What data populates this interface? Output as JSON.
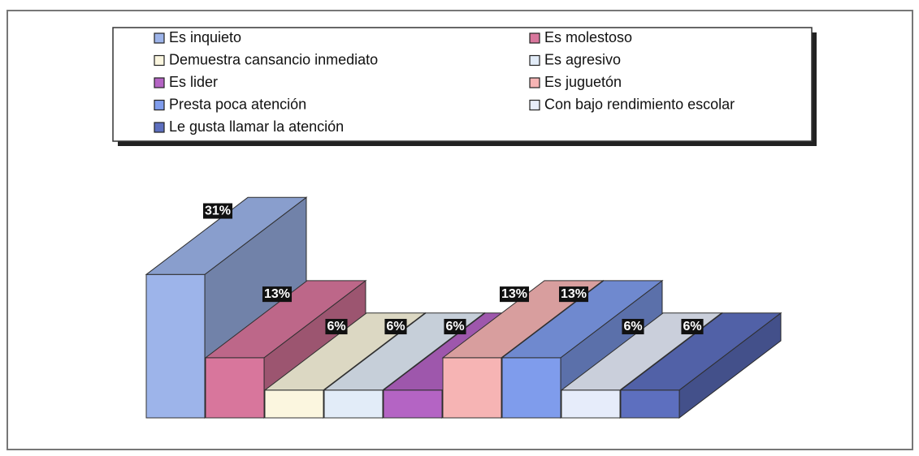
{
  "chart_data": {
    "type": "bar3d",
    "series": [
      {
        "name": "Es inquieto",
        "color": "#9db4ea",
        "values": [
          31
        ],
        "value_labels": [
          "31%"
        ]
      },
      {
        "name": "Es molestoso",
        "color": "#d8769c",
        "values": [
          13
        ],
        "value_labels": [
          "13%"
        ]
      },
      {
        "name": "Demuestra cansancio inmediato",
        "color": "#fbf6df",
        "values": [
          6
        ],
        "value_labels": [
          "6%"
        ]
      },
      {
        "name": "Es agresivo",
        "color": "#e2ecf8",
        "values": [
          6
        ],
        "value_labels": [
          "6%"
        ]
      },
      {
        "name": "Es lider",
        "color": "#b464c4",
        "values": [
          6
        ],
        "value_labels": [
          "6%"
        ]
      },
      {
        "name": "Es juguetón",
        "color": "#f6b4b4",
        "values": [
          13
        ],
        "value_labels": [
          "13%"
        ]
      },
      {
        "name": "Presta poca atención",
        "color": "#7f9cec",
        "values": [
          13
        ],
        "value_labels": [
          "13%"
        ]
      },
      {
        "name": "Con bajo rendimiento escolar",
        "color": "#e6ecfa",
        "values": [
          6
        ],
        "value_labels": [
          "6%"
        ]
      },
      {
        "name": "Le gusta llamar la atención",
        "color": "#5d6fbf",
        "values": [
          6
        ],
        "value_labels": [
          "6%"
        ]
      }
    ]
  }
}
